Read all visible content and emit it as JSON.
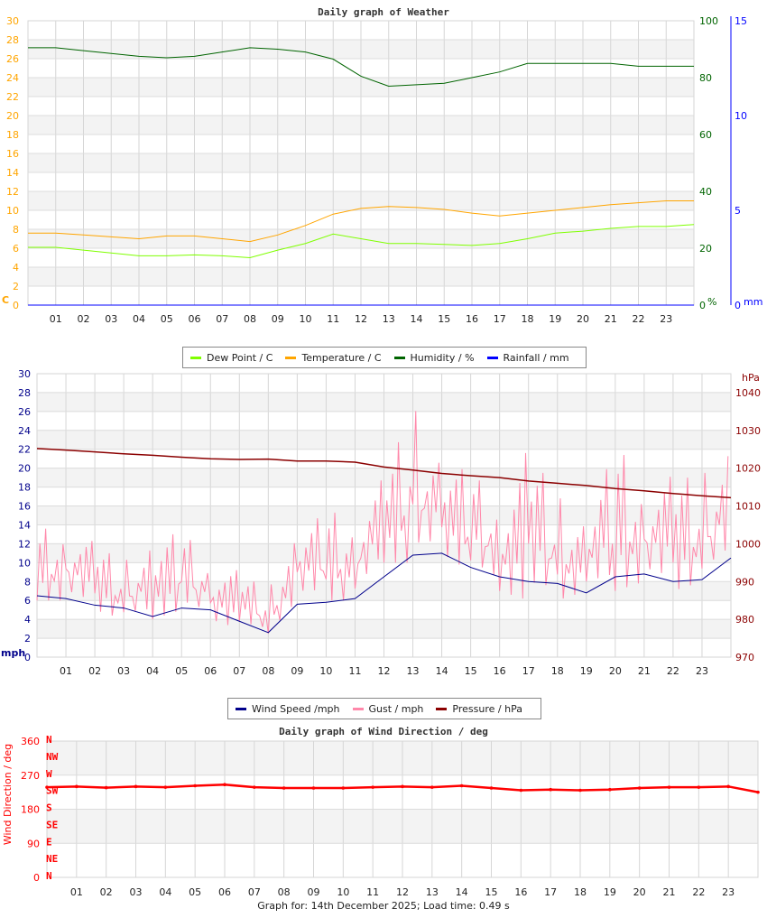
{
  "chart_data": [
    {
      "type": "line",
      "title": "Daily graph of Weather",
      "x_tick_labels": [
        "01",
        "02",
        "03",
        "04",
        "05",
        "06",
        "07",
        "08",
        "09",
        "10",
        "11",
        "12",
        "13",
        "14",
        "15",
        "16",
        "17",
        "18",
        "19",
        "20",
        "21",
        "22",
        "23"
      ],
      "x_hours": [
        0,
        1,
        2,
        3,
        4,
        5,
        6,
        7,
        8,
        9,
        10,
        11,
        12,
        13,
        14,
        15,
        16,
        17,
        18,
        19,
        20,
        21,
        22,
        23,
        24
      ],
      "axes": {
        "left": {
          "label": "C",
          "range": [
            0,
            30
          ],
          "ticks": [
            0,
            2,
            4,
            6,
            8,
            10,
            12,
            14,
            16,
            18,
            20,
            22,
            24,
            26,
            28,
            30
          ],
          "color": "#ffa500"
        },
        "right1": {
          "label": "%",
          "range": [
            0,
            100
          ],
          "ticks": [
            0,
            20,
            40,
            60,
            80,
            100
          ],
          "color": "#006400"
        },
        "right2": {
          "label": "mm",
          "range": [
            0,
            15
          ],
          "ticks": [
            0,
            5,
            10,
            15
          ],
          "color": "#0000ff"
        }
      },
      "grid": true,
      "series": [
        {
          "name": "Dew Point / C",
          "axis": "left",
          "color": "#7fff00",
          "values": [
            6.1,
            6.1,
            5.8,
            5.5,
            5.2,
            5.2,
            5.3,
            5.2,
            5.0,
            5.8,
            6.5,
            7.5,
            7.0,
            6.5,
            6.5,
            6.4,
            6.3,
            6.5,
            7.0,
            7.6,
            7.8,
            8.1,
            8.3,
            8.3,
            8.5
          ]
        },
        {
          "name": "Temperature / C",
          "axis": "left",
          "color": "#ffa500",
          "values": [
            7.6,
            7.6,
            7.4,
            7.2,
            7.0,
            7.3,
            7.3,
            7.0,
            6.7,
            7.4,
            8.4,
            9.6,
            10.2,
            10.4,
            10.3,
            10.1,
            9.7,
            9.4,
            9.7,
            10.0,
            10.3,
            10.6,
            10.8,
            11.0,
            11.0
          ]
        },
        {
          "name": "Humidity / %",
          "axis": "right1",
          "color": "#006400",
          "values": [
            90.5,
            90.5,
            89.5,
            88.5,
            87.5,
            87,
            87.5,
            89,
            90.5,
            90,
            89,
            86.5,
            80.5,
            77,
            77.5,
            78,
            80,
            82,
            85,
            85,
            85,
            85,
            84,
            84,
            84
          ]
        },
        {
          "name": "Rainfall / mm",
          "axis": "right2",
          "color": "#0000ff",
          "values": [
            0,
            0,
            0,
            0,
            0,
            0,
            0,
            0,
            0,
            0,
            0,
            0,
            0,
            0,
            0,
            0,
            0,
            0,
            0,
            0,
            0,
            0,
            0,
            0,
            0
          ]
        }
      ],
      "legend": "bottom"
    },
    {
      "type": "line",
      "x_tick_labels": [
        "01",
        "02",
        "03",
        "04",
        "05",
        "06",
        "07",
        "08",
        "09",
        "10",
        "11",
        "12",
        "13",
        "14",
        "15",
        "16",
        "17",
        "18",
        "19",
        "20",
        "21",
        "22",
        "23"
      ],
      "x_hours": [
        0,
        1,
        2,
        3,
        4,
        5,
        6,
        7,
        8,
        9,
        10,
        11,
        12,
        13,
        14,
        15,
        16,
        17,
        18,
        19,
        20,
        21,
        22,
        23,
        24
      ],
      "axes": {
        "left": {
          "label": "mph",
          "range": [
            0,
            30
          ],
          "ticks": [
            0,
            2,
            4,
            6,
            8,
            10,
            12,
            14,
            16,
            18,
            20,
            22,
            24,
            26,
            28,
            30
          ],
          "color": "#00008b"
        },
        "right": {
          "label": "hPa",
          "range": [
            970,
            1045
          ],
          "ticks": [
            970,
            980,
            990,
            1000,
            1010,
            1020,
            1030,
            1040
          ],
          "color": "#8b0000"
        }
      },
      "grid": true,
      "series": [
        {
          "name": "Wind Speed /mph",
          "axis": "left",
          "color": "#00008b",
          "values": [
            6.5,
            6.2,
            5.5,
            5.2,
            4.3,
            5.2,
            5.0,
            3.8,
            2.6,
            5.6,
            5.8,
            6.2,
            8.5,
            10.8,
            11.0,
            9.5,
            8.5,
            8.0,
            7.8,
            6.8,
            8.5,
            8.8,
            8.0,
            8.2,
            10.5
          ]
        },
        {
          "name": "Gust / mph",
          "axis": "left",
          "color": "#ff88aa",
          "max": [
            13,
            15,
            12,
            10,
            13,
            13,
            11,
            9,
            7,
            14,
            15,
            16,
            19,
            26.5,
            22,
            19,
            18,
            22,
            17,
            15,
            22,
            20,
            19,
            19,
            24
          ],
          "min": [
            6,
            6,
            5,
            4,
            4,
            5,
            4,
            3,
            2.5,
            6,
            6,
            6,
            10,
            10,
            11,
            9,
            7,
            6,
            6,
            7,
            7,
            8,
            7,
            8,
            10
          ]
        },
        {
          "name": "Pressure / hPa",
          "axis": "right",
          "color": "#8b0000",
          "values": [
            1025.2,
            1024.8,
            1024.3,
            1023.8,
            1023.4,
            1022.9,
            1022.5,
            1022.3,
            1022.4,
            1021.9,
            1021.9,
            1021.6,
            1020.3,
            1019.5,
            1018.6,
            1018.0,
            1017.5,
            1016.6,
            1016.0,
            1015.4,
            1014.6,
            1014.0,
            1013.3,
            1012.7,
            1012.2
          ]
        }
      ],
      "legend": "bottom"
    },
    {
      "type": "scatter",
      "title": "Daily graph of Wind Direction / deg",
      "ylabel": "Wind Direction / deg",
      "x_tick_labels": [
        "01",
        "02",
        "03",
        "04",
        "05",
        "06",
        "07",
        "08",
        "09",
        "10",
        "11",
        "12",
        "13",
        "14",
        "15",
        "16",
        "17",
        "18",
        "19",
        "20",
        "21",
        "22",
        "23"
      ],
      "x_hours": [
        0,
        1,
        2,
        3,
        4,
        5,
        6,
        7,
        8,
        9,
        10,
        11,
        12,
        13,
        14,
        15,
        16,
        17,
        18,
        19,
        20,
        21,
        22,
        23,
        24
      ],
      "axes": {
        "left": {
          "range": [
            0,
            360
          ],
          "ticks": [
            0,
            90,
            180,
            270,
            360
          ],
          "color": "#ff0000"
        },
        "compass": [
          "N",
          "NE",
          "E",
          "SE",
          "S",
          "SW",
          "W",
          "NW",
          "N"
        ]
      },
      "grid": true,
      "series": [
        {
          "color": "#ff0000",
          "values": [
            238,
            240,
            237,
            240,
            238,
            242,
            245,
            238,
            236,
            236,
            236,
            238,
            240,
            238,
            242,
            236,
            230,
            232,
            230,
            232,
            236,
            238,
            238,
            240,
            225
          ]
        }
      ]
    }
  ],
  "footer": "Graph for: 14th December 2025; Load time: 0.49 s"
}
